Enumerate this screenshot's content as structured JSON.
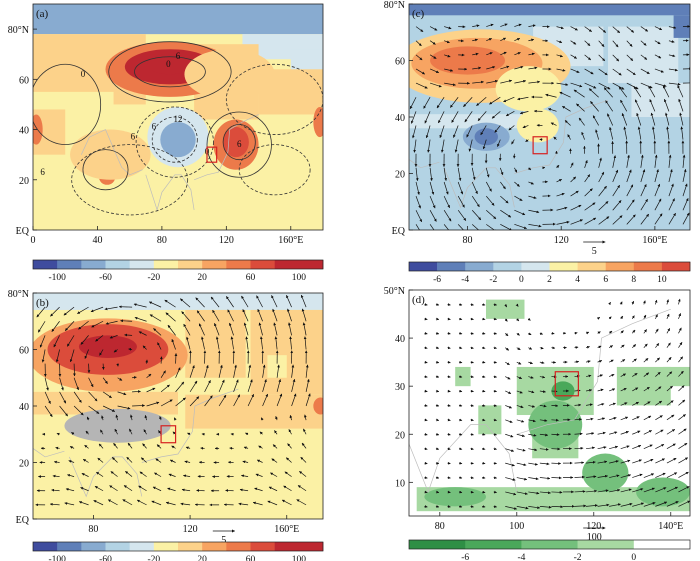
{
  "figure": {
    "background": "#ffffff",
    "land_color": "#ffffff",
    "map_line_color": "#bdbdbd"
  },
  "chart_data": [
    {
      "id": "a",
      "type": "heatmap",
      "label": "(a)",
      "xlim": [
        0,
        180
      ],
      "ylim": [
        0,
        90
      ],
      "xticks": [
        0,
        40,
        80,
        120,
        160
      ],
      "xtick_labels": [
        "0",
        "40",
        "80",
        "120",
        "160°E"
      ],
      "yticks": [
        0,
        20,
        40,
        60,
        80
      ],
      "ytick_labels": [
        "EQ",
        "20",
        "40",
        "60",
        "80°N"
      ],
      "background_value": -10,
      "patches": [
        {
          "lon": 0,
          "lat": 78,
          "w": 180,
          "h": 12,
          "v": -70
        },
        {
          "lon": 130,
          "lat": 68,
          "w": 50,
          "h": 10,
          "v": -40
        },
        {
          "lon": 160,
          "lat": 60,
          "w": 20,
          "h": 12,
          "v": -30
        },
        {
          "lon": 0,
          "lat": 55,
          "w": 70,
          "h": 23,
          "v": 0
        },
        {
          "lon": 100,
          "lat": 44,
          "w": 40,
          "h": 30,
          "v": 0
        },
        {
          "lon": 140,
          "lat": 44,
          "w": 40,
          "h": 20,
          "v": 0
        },
        {
          "lon": 50,
          "lat": 50,
          "w": 20,
          "h": 8,
          "v": 10
        },
        {
          "lon": 140,
          "lat": 32,
          "w": 40,
          "h": 14,
          "v": -20
        },
        {
          "lon": 0,
          "lat": 20,
          "w": 30,
          "h": 14,
          "v": -20
        },
        {
          "lon": 0,
          "lat": 30,
          "w": 20,
          "h": 18,
          "v": 0
        }
      ],
      "blobs": [
        {
          "lon": 85,
          "lat": 64,
          "rx": 40,
          "ry": 11,
          "v": 40
        },
        {
          "lon": 85,
          "lat": 65,
          "rx": 28,
          "ry": 7,
          "v": 80
        },
        {
          "lon": 85,
          "lat": 66,
          "rx": 14,
          "ry": 4,
          "v": 110
        },
        {
          "lon": 2,
          "lat": 40,
          "rx": 4,
          "ry": 6,
          "v": 50
        },
        {
          "lon": 90,
          "lat": 37,
          "rx": 19,
          "ry": 12,
          "v": -40
        },
        {
          "lon": 90,
          "lat": 36,
          "rx": 11,
          "ry": 7,
          "v": -80
        },
        {
          "lon": 126,
          "lat": 34,
          "rx": 14,
          "ry": 10,
          "v": 40
        },
        {
          "lon": 126,
          "lat": 35,
          "rx": 8,
          "ry": 6,
          "v": 70
        },
        {
          "lon": 178,
          "lat": 43,
          "rx": 4,
          "ry": 6,
          "v": 50
        },
        {
          "lon": 46,
          "lat": 25,
          "rx": 8,
          "ry": 4,
          "v": 30
        },
        {
          "lon": 46,
          "lat": 21,
          "rx": 5,
          "ry": 3,
          "v": 50
        },
        {
          "lon": 48,
          "lat": 30,
          "rx": 25,
          "ry": 10,
          "v": 0
        },
        {
          "lon": 122,
          "lat": 62,
          "rx": 28,
          "ry": 10,
          "v": 0
        }
      ],
      "contours": [
        {
          "lonc": 85,
          "latc": 63,
          "rx": 22,
          "ry": 6,
          "dash": false
        },
        {
          "lonc": 85,
          "latc": 63,
          "rx": 38,
          "ry": 12,
          "dash": false
        },
        {
          "lonc": 88,
          "latc": 36,
          "rx": 14,
          "ry": 9,
          "dash": true
        },
        {
          "lonc": 88,
          "latc": 35,
          "rx": 24,
          "ry": 14,
          "dash": true
        },
        {
          "lonc": 128,
          "latc": 35,
          "rx": 10,
          "ry": 7,
          "dash": false
        },
        {
          "lonc": 128,
          "latc": 34,
          "rx": 20,
          "ry": 13,
          "dash": false
        },
        {
          "lonc": 45,
          "latc": 24,
          "rx": 14,
          "ry": 8,
          "dash": false
        },
        {
          "lonc": 60,
          "latc": 20,
          "rx": 36,
          "ry": 14,
          "dash": true
        },
        {
          "lonc": 150,
          "latc": 24,
          "rx": 22,
          "ry": 10,
          "dash": true
        },
        {
          "lonc": 20,
          "latc": 50,
          "rx": 22,
          "ry": 16,
          "dash": false
        },
        {
          "lonc": 150,
          "latc": 52,
          "rx": 30,
          "ry": 14,
          "dash": true
        }
      ],
      "contour_labels": [
        {
          "lon": 90,
          "lat": 68,
          "text": "6"
        },
        {
          "lon": 84,
          "lat": 65,
          "text": "0"
        },
        {
          "lon": 31,
          "lat": 61,
          "text": "0"
        },
        {
          "lon": 90,
          "lat": 43,
          "text": "12"
        },
        {
          "lon": 62,
          "lat": 36,
          "text": "6"
        },
        {
          "lon": 75,
          "lat": 40,
          "text": "6"
        },
        {
          "lon": 128,
          "lat": 33,
          "text": "6"
        },
        {
          "lon": 108,
          "lat": 30,
          "text": "0"
        },
        {
          "lon": 6,
          "lat": 22,
          "text": "6"
        }
      ],
      "levels": [
        -120,
        -100,
        -80,
        -60,
        -40,
        -20,
        0,
        20,
        40,
        60,
        80,
        100,
        120
      ],
      "colorbar_ticks": [
        "-100",
        "-60",
        "-20",
        "20",
        "60",
        "100"
      ],
      "colorbar_tick_levels": [
        -100,
        -60,
        -20,
        20,
        60,
        100
      ],
      "box": {
        "lon": [
          108,
          114
        ],
        "lat": [
          27,
          33
        ]
      }
    },
    {
      "id": "b",
      "type": "heatmap",
      "label": "(b)",
      "xlim": [
        55,
        175
      ],
      "ylim": [
        0,
        80
      ],
      "xticks": [
        80,
        120,
        160
      ],
      "xtick_labels": [
        "80",
        "120",
        "160°E"
      ],
      "yticks": [
        0,
        20,
        40,
        60,
        80
      ],
      "ytick_labels": [
        "EQ",
        "20",
        "40",
        "60",
        "80°N"
      ],
      "background_value": -10,
      "patches": [
        {
          "lon": 55,
          "lat": 74,
          "w": 120,
          "h": 6,
          "v": -40
        },
        {
          "lon": 118,
          "lat": 50,
          "w": 25,
          "h": 24,
          "v": 0
        },
        {
          "lon": 55,
          "lat": 37,
          "w": 60,
          "h": 8,
          "v": 0
        },
        {
          "lon": 145,
          "lat": 44,
          "w": 30,
          "h": 30,
          "v": 0
        },
        {
          "lon": 118,
          "lat": 32,
          "w": 57,
          "h": 12,
          "v": 0
        },
        {
          "lon": 152,
          "lat": 50,
          "w": 8,
          "h": 8,
          "v": -10
        }
      ],
      "blobs": [
        {
          "lon": 86,
          "lat": 58,
          "rx": 33,
          "ry": 13,
          "v": 30
        },
        {
          "lon": 86,
          "lat": 60,
          "rx": 25,
          "ry": 9,
          "v": 60
        },
        {
          "lon": 86,
          "lat": 61,
          "rx": 12,
          "ry": 4,
          "v": 100
        },
        {
          "lon": 85,
          "lat": 27,
          "rx": 22,
          "ry": 6,
          "v": -20
        },
        {
          "lon": 174,
          "lat": 40,
          "rx": 3,
          "ry": 3,
          "v": 40
        }
      ],
      "grey_region": {
        "lon": 90,
        "lat": 33,
        "rx": 22,
        "ry": 6,
        "color": "#b5b5b5"
      },
      "vectors": {
        "lon_range": [
          60,
          172
        ],
        "lat_range": [
          5,
          75
        ],
        "dlon": 6,
        "dlat": 5,
        "field": "b",
        "ref_label": "5"
      },
      "levels": [
        -120,
        -100,
        -80,
        -60,
        -40,
        -20,
        0,
        20,
        40,
        60,
        80,
        100,
        120
      ],
      "colorbar_ticks": [
        "-100",
        "-60",
        "-20",
        "20",
        "60",
        "100"
      ],
      "colorbar_tick_levels": [
        -100,
        -60,
        -20,
        20,
        60,
        100
      ],
      "box": {
        "lon": [
          108,
          114
        ],
        "lat": [
          27,
          33
        ]
      }
    },
    {
      "id": "c",
      "type": "heatmap",
      "label": "(c)",
      "xlim": [
        55,
        175
      ],
      "ylim": [
        0,
        80
      ],
      "xticks": [
        80,
        120,
        160
      ],
      "xtick_labels": [
        "80",
        "120",
        "160°E"
      ],
      "yticks": [
        0,
        20,
        40,
        60,
        80
      ],
      "ytick_labels": [
        "EQ",
        "20",
        "40",
        "60",
        "80°N"
      ],
      "background_value": -1,
      "patches": [
        {
          "lon": 55,
          "lat": 76,
          "w": 120,
          "h": 4,
          "v": -5
        },
        {
          "lon": 108,
          "lat": 58,
          "w": 30,
          "h": 14,
          "v": 1
        },
        {
          "lon": 140,
          "lat": 52,
          "w": 30,
          "h": 20,
          "v": 1
        },
        {
          "lon": 150,
          "lat": 40,
          "w": 25,
          "h": 12,
          "v": 1
        },
        {
          "lon": 55,
          "lat": 36,
          "w": 55,
          "h": 5,
          "v": 1
        },
        {
          "lon": 168,
          "lat": 68,
          "w": 7,
          "h": 8,
          "v": -5
        }
      ],
      "blobs": [
        {
          "lon": 86,
          "lat": 58,
          "rx": 38,
          "ry": 13,
          "v": 5
        },
        {
          "lon": 84,
          "lat": 59,
          "rx": 28,
          "ry": 9,
          "v": 7
        },
        {
          "lon": 80,
          "lat": 60,
          "rx": 16,
          "ry": 5,
          "v": 9
        },
        {
          "lon": 106,
          "lat": 50,
          "rx": 14,
          "ry": 8,
          "v": 3
        },
        {
          "lon": 88,
          "lat": 33,
          "rx": 10,
          "ry": 5,
          "v": -3
        },
        {
          "lon": 88,
          "lat": 33,
          "rx": 5,
          "ry": 3,
          "v": -5
        },
        {
          "lon": 110,
          "lat": 37,
          "rx": 9,
          "ry": 6,
          "v": 3
        }
      ],
      "vectors": {
        "lon_range": [
          58,
          172
        ],
        "lat_range": [
          2,
          75
        ],
        "dlon": 6,
        "dlat": 5,
        "field": "c",
        "ref_label": "5"
      },
      "levels": [
        -8,
        -6,
        -4,
        -2,
        0,
        2,
        4,
        6,
        8,
        10,
        12
      ],
      "colorbar_ticks": [
        "-6",
        "-4",
        "-2",
        "0",
        "2",
        "4",
        "6",
        "8",
        "10"
      ],
      "colorbar_tick_levels": [
        -6,
        -4,
        -2,
        0,
        2,
        4,
        6,
        8,
        10
      ],
      "box": {
        "lon": [
          108,
          114
        ],
        "lat": [
          27,
          33
        ]
      }
    },
    {
      "id": "d",
      "type": "heatmap",
      "label": "(d)",
      "xlim": [
        72,
        145
      ],
      "ylim": [
        3,
        50
      ],
      "xticks": [
        80,
        100,
        120,
        140
      ],
      "xtick_labels": [
        "80",
        "100",
        "120",
        "140°E"
      ],
      "yticks": [
        10,
        20,
        30,
        40,
        50
      ],
      "ytick_labels": [
        "10",
        "20",
        "30",
        "40",
        "50°N"
      ],
      "background_value": 1,
      "patches": [
        {
          "lon": 92,
          "lat": 44,
          "w": 10,
          "h": 4,
          "v": -2
        },
        {
          "lon": 84,
          "lat": 30,
          "w": 4,
          "h": 4,
          "v": -2
        },
        {
          "lon": 100,
          "lat": 24,
          "w": 20,
          "h": 10,
          "v": -2
        },
        {
          "lon": 104,
          "lat": 15,
          "w": 12,
          "h": 10,
          "v": -2
        },
        {
          "lon": 126,
          "lat": 26,
          "w": 14,
          "h": 8,
          "v": -2
        },
        {
          "lon": 138,
          "lat": 30,
          "w": 7,
          "h": 4,
          "v": -2
        },
        {
          "lon": 90,
          "lat": 20,
          "w": 6,
          "h": 6,
          "v": -2
        },
        {
          "lon": 74,
          "lat": 4,
          "w": 71,
          "h": 5,
          "v": -2
        }
      ],
      "blobs": [
        {
          "lon": 110,
          "lat": 22,
          "rx": 7,
          "ry": 5,
          "v": -4
        },
        {
          "lon": 123,
          "lat": 12,
          "rx": 6,
          "ry": 4,
          "v": -4
        },
        {
          "lon": 112,
          "lat": 29,
          "rx": 3,
          "ry": 2,
          "v": -6
        },
        {
          "lon": 138,
          "lat": 8,
          "rx": 7,
          "ry": 3,
          "v": -4
        },
        {
          "lon": 84,
          "lat": 7,
          "rx": 8,
          "ry": 2,
          "v": -4
        }
      ],
      "vectors": {
        "lon_range": [
          76,
          144
        ],
        "lat_range": [
          5,
          48
        ],
        "dlon": 3,
        "dlat": 3,
        "field": "d",
        "ref_label": "100"
      },
      "levels": [
        -8,
        -6,
        -4,
        -2,
        0,
        2
      ],
      "colorbar_ticks": [
        "-6",
        "-4",
        "-2",
        "0"
      ],
      "colorbar_tick_levels": [
        -6,
        -4,
        -2,
        0
      ],
      "box": {
        "lon": [
          110,
          116
        ],
        "lat": [
          28,
          33
        ]
      }
    }
  ],
  "palettes": {
    "diverging": [
      "#3f4c9e",
      "#5f7fb8",
      "#88abd0",
      "#b3d3e4",
      "#d5e6ee",
      "#fbf1a5",
      "#fcd28a",
      "#f7a462",
      "#ec7a4a",
      "#db4c3b",
      "#bd2730",
      "#bd2730"
    ],
    "green": [
      "#2f8f45",
      "#4aa85a",
      "#74c07c",
      "#a7d9a2",
      "#ffffff"
    ]
  }
}
